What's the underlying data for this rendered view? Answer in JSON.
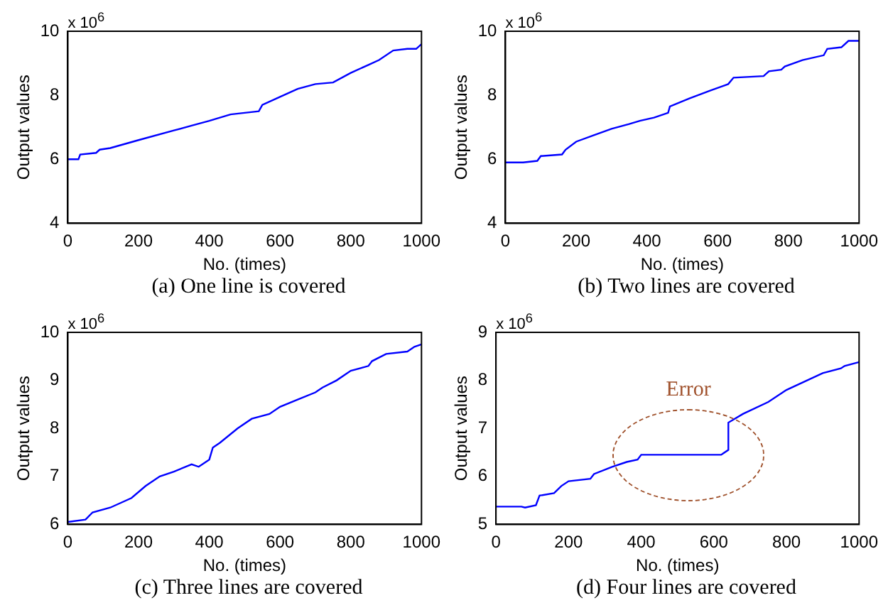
{
  "chart_data": [
    {
      "type": "line",
      "title": "(a) One line is covered",
      "xlabel": "No. (times)",
      "ylabel": "Output values",
      "annotations": [
        "x 10$^{6}$"
      ],
      "xlim": [
        0,
        1000
      ],
      "xticks": [
        0,
        200,
        400,
        600,
        800,
        1000
      ],
      "ylim": [
        4,
        10
      ],
      "yticks": [
        4,
        6,
        8,
        10
      ],
      "series": [
        {
          "color": "#0000ff",
          "x": [
            0,
            30,
            35,
            80,
            90,
            120,
            200,
            300,
            350,
            400,
            460,
            500,
            540,
            550,
            600,
            650,
            700,
            750,
            800,
            850,
            880,
            920,
            960,
            985,
            1000
          ],
          "values": [
            6.0,
            6.0,
            6.15,
            6.2,
            6.3,
            6.35,
            6.6,
            6.9,
            7.05,
            7.2,
            7.4,
            7.45,
            7.5,
            7.7,
            7.95,
            8.2,
            8.35,
            8.4,
            8.7,
            8.95,
            9.1,
            9.4,
            9.45,
            9.45,
            9.6
          ]
        }
      ]
    },
    {
      "type": "line",
      "title": "(b) Two lines are covered",
      "xlabel": "No. (times)",
      "ylabel": "Output values",
      "annotations": [
        "x 10$^{6}$"
      ],
      "xlim": [
        0,
        1000
      ],
      "xticks": [
        0,
        200,
        400,
        600,
        800,
        1000
      ],
      "ylim": [
        4,
        10
      ],
      "yticks": [
        4,
        6,
        8,
        10
      ],
      "series": [
        {
          "color": "#0000ff",
          "x": [
            0,
            50,
            90,
            100,
            160,
            170,
            200,
            250,
            300,
            350,
            380,
            420,
            460,
            465,
            520,
            580,
            630,
            645,
            730,
            745,
            780,
            790,
            840,
            900,
            910,
            950,
            970,
            1000
          ],
          "values": [
            5.9,
            5.9,
            5.95,
            6.1,
            6.15,
            6.3,
            6.55,
            6.75,
            6.95,
            7.1,
            7.2,
            7.3,
            7.45,
            7.65,
            7.9,
            8.15,
            8.35,
            8.55,
            8.6,
            8.75,
            8.8,
            8.9,
            9.1,
            9.25,
            9.45,
            9.5,
            9.7,
            9.7
          ]
        }
      ]
    },
    {
      "type": "line",
      "title": "(c) Three lines are covered",
      "xlabel": "No. (times)",
      "ylabel": "Output values",
      "annotations": [
        "x 10$^{6}$"
      ],
      "xlim": [
        0,
        1000
      ],
      "xticks": [
        0,
        200,
        400,
        600,
        800,
        1000
      ],
      "ylim": [
        6,
        10
      ],
      "yticks": [
        6,
        7,
        8,
        9,
        10
      ],
      "series": [
        {
          "color": "#0000ff",
          "x": [
            0,
            50,
            70,
            120,
            180,
            220,
            260,
            300,
            350,
            370,
            400,
            410,
            430,
            480,
            520,
            570,
            600,
            650,
            700,
            720,
            760,
            800,
            850,
            860,
            900,
            960,
            980,
            1000
          ],
          "values": [
            6.05,
            6.1,
            6.25,
            6.35,
            6.55,
            6.8,
            7.0,
            7.1,
            7.25,
            7.2,
            7.35,
            7.6,
            7.7,
            8.0,
            8.2,
            8.3,
            8.45,
            8.6,
            8.75,
            8.85,
            9.0,
            9.2,
            9.3,
            9.4,
            9.55,
            9.6,
            9.7,
            9.75
          ]
        }
      ]
    },
    {
      "type": "line",
      "title": "(d) Four lines are covered",
      "xlabel": "No. (times)",
      "ylabel": "Output values",
      "annotations": [
        "x 10$^{6}$",
        "Error"
      ],
      "xlim": [
        0,
        1000
      ],
      "xticks": [
        0,
        200,
        400,
        600,
        800,
        1000
      ],
      "ylim": [
        5,
        9
      ],
      "yticks": [
        5,
        6,
        7,
        8,
        9
      ],
      "series": [
        {
          "color": "#0000ff",
          "x": [
            0,
            70,
            80,
            110,
            120,
            160,
            180,
            200,
            260,
            270,
            320,
            360,
            390,
            400,
            500,
            620,
            640,
            640,
            680,
            750,
            800,
            900,
            950,
            960,
            1000
          ],
          "values": [
            5.37,
            5.37,
            5.35,
            5.4,
            5.6,
            5.65,
            5.8,
            5.9,
            5.95,
            6.05,
            6.2,
            6.3,
            6.35,
            6.45,
            6.45,
            6.45,
            6.55,
            7.12,
            7.3,
            7.55,
            7.8,
            8.15,
            8.25,
            8.3,
            8.38
          ]
        }
      ]
    }
  ]
}
